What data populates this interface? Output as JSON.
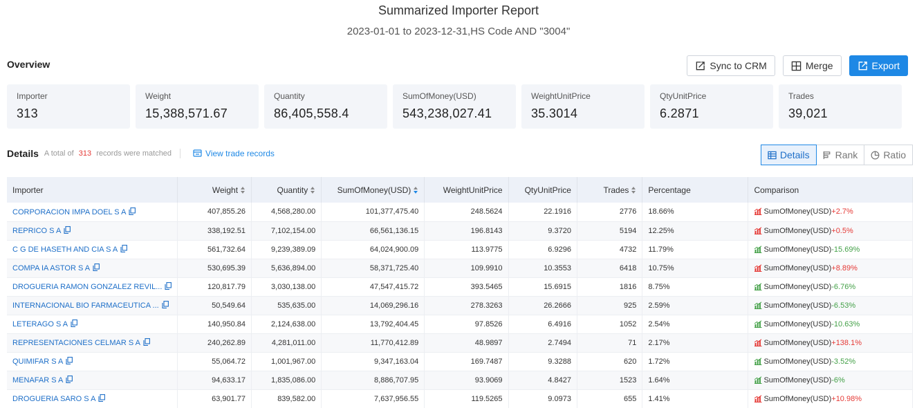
{
  "header": {
    "title": "Summarized Importer Report",
    "subtitle": "2023-01-01 to 2023-12-31,HS Code AND \"3004\""
  },
  "overview": {
    "label": "Overview",
    "buttons": {
      "sync": "Sync to CRM",
      "merge": "Merge",
      "export": "Export"
    },
    "stats": [
      {
        "label": "Importer",
        "value": "313"
      },
      {
        "label": "Weight",
        "value": "15,388,571.67"
      },
      {
        "label": "Quantity",
        "value": "86,405,558.4"
      },
      {
        "label": "SumOfMoney(USD)",
        "value": "543,238,027.41"
      },
      {
        "label": "WeightUnitPrice",
        "value": "35.3014"
      },
      {
        "label": "QtyUnitPrice",
        "value": "6.2871"
      },
      {
        "label": "Trades",
        "value": "39,021"
      }
    ]
  },
  "details": {
    "label": "Details",
    "total_prefix": "A total of",
    "total_count": "313",
    "total_suffix": "records were matched",
    "view_link": "View trade records",
    "tabs": {
      "details": "Details",
      "rank": "Rank",
      "ratio": "Ratio"
    }
  },
  "table": {
    "columns": {
      "importer": "Importer",
      "weight": "Weight",
      "quantity": "Quantity",
      "sum": "SumOfMoney(USD)",
      "wup": "WeightUnitPrice",
      "qup": "QtyUnitPrice",
      "trades": "Trades",
      "percentage": "Percentage",
      "comparison": "Comparison"
    },
    "rows": [
      {
        "importer": "CORPORACION IMPA DOEL S A",
        "weight": "407,855.26",
        "quantity": "4,568,280.00",
        "sum": "101,377,475.40",
        "wup": "248.5624",
        "qup": "22.1916",
        "trades": "2776",
        "percentage": "18.66%",
        "cmp_label": "SumOfMoney(USD)",
        "cmp_change": "+2.7%",
        "trend": "up"
      },
      {
        "importer": "REPRICO S A",
        "weight": "338,192.51",
        "quantity": "7,102,154.00",
        "sum": "66,561,136.15",
        "wup": "196.8143",
        "qup": "9.3720",
        "trades": "5194",
        "percentage": "12.25%",
        "cmp_label": "SumOfMoney(USD)",
        "cmp_change": "+0.5%",
        "trend": "up"
      },
      {
        "importer": "C G DE HASETH AND CIA S A",
        "weight": "561,732.64",
        "quantity": "9,239,389.09",
        "sum": "64,024,900.09",
        "wup": "113.9775",
        "qup": "6.9296",
        "trades": "4732",
        "percentage": "11.79%",
        "cmp_label": "SumOfMoney(USD)",
        "cmp_change": "-15.69%",
        "trend": "down"
      },
      {
        "importer": "COMPA IA ASTOR S A",
        "weight": "530,695.39",
        "quantity": "5,636,894.00",
        "sum": "58,371,725.40",
        "wup": "109.9910",
        "qup": "10.3553",
        "trades": "6418",
        "percentage": "10.75%",
        "cmp_label": "SumOfMoney(USD)",
        "cmp_change": "+8.89%",
        "trend": "up"
      },
      {
        "importer": "DROGUERIA RAMON GONZALEZ REVIL...",
        "weight": "120,817.79",
        "quantity": "3,030,138.00",
        "sum": "47,547,415.72",
        "wup": "393.5465",
        "qup": "15.6915",
        "trades": "1816",
        "percentage": "8.75%",
        "cmp_label": "SumOfMoney(USD)",
        "cmp_change": "-6.76%",
        "trend": "down"
      },
      {
        "importer": "INTERNACIONAL BIO FARMACEUTICA ...",
        "weight": "50,549.64",
        "quantity": "535,635.00",
        "sum": "14,069,296.16",
        "wup": "278.3263",
        "qup": "26.2666",
        "trades": "925",
        "percentage": "2.59%",
        "cmp_label": "SumOfMoney(USD)",
        "cmp_change": "-6.53%",
        "trend": "down"
      },
      {
        "importer": "LETERAGO S A",
        "weight": "140,950.84",
        "quantity": "2,124,638.00",
        "sum": "13,792,404.45",
        "wup": "97.8526",
        "qup": "6.4916",
        "trades": "1052",
        "percentage": "2.54%",
        "cmp_label": "SumOfMoney(USD)",
        "cmp_change": "-10.63%",
        "trend": "down"
      },
      {
        "importer": "REPRESENTACIONES CELMAR S A",
        "weight": "240,262.89",
        "quantity": "4,281,011.00",
        "sum": "11,770,412.89",
        "wup": "48.9897",
        "qup": "2.7494",
        "trades": "71",
        "percentage": "2.17%",
        "cmp_label": "SumOfMoney(USD)",
        "cmp_change": "+138.1%",
        "trend": "up"
      },
      {
        "importer": "QUIMIFAR S A",
        "weight": "55,064.72",
        "quantity": "1,001,967.00",
        "sum": "9,347,163.04",
        "wup": "169.7487",
        "qup": "9.3288",
        "trades": "620",
        "percentage": "1.72%",
        "cmp_label": "SumOfMoney(USD)",
        "cmp_change": "-3.52%",
        "trend": "down"
      },
      {
        "importer": "MENAFAR S A",
        "weight": "94,633.17",
        "quantity": "1,835,086.00",
        "sum": "8,886,707.95",
        "wup": "93.9069",
        "qup": "4.8427",
        "trades": "1523",
        "percentage": "1.64%",
        "cmp_label": "SumOfMoney(USD)",
        "cmp_change": "-6%",
        "trend": "down"
      },
      {
        "importer": "DROGUERIA SARO S A",
        "weight": "63,901.77",
        "quantity": "839,582.00",
        "sum": "7,637,956.55",
        "wup": "119.5265",
        "qup": "9.0973",
        "trades": "655",
        "percentage": "1.41%",
        "cmp_label": "SumOfMoney(USD)",
        "cmp_change": "+10.98%",
        "trend": "up"
      }
    ]
  },
  "colors": {
    "accent": "#1e88e5",
    "up": "#e53935",
    "down": "#43a047"
  }
}
